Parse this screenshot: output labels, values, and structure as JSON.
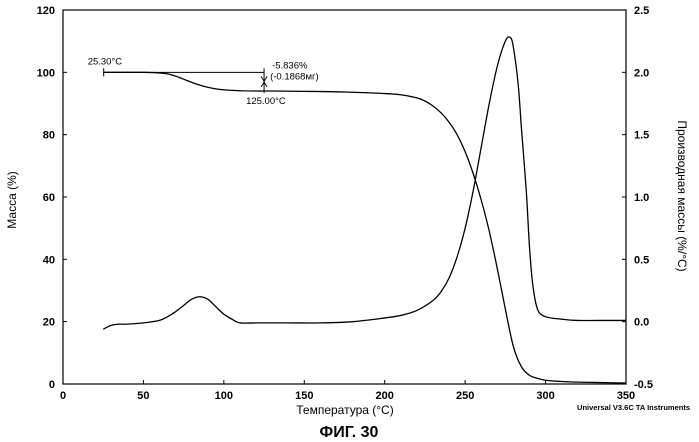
{
  "chart_data": {
    "type": "line",
    "x_axis": {
      "label": "Температура (°C)",
      "range": [
        0,
        350
      ],
      "ticks": [
        0,
        50,
        100,
        150,
        200,
        250,
        300,
        350
      ]
    },
    "y_left": {
      "label": "Масса (%)",
      "range": [
        0,
        120
      ],
      "ticks": [
        0,
        20,
        40,
        60,
        80,
        100,
        120
      ]
    },
    "y_right": {
      "label": "Производная массы (%/°C)",
      "range": [
        -0.5,
        2.5
      ],
      "ticks": [
        "-0.5",
        "0.0",
        "0.5",
        "1.0",
        "1.5",
        "2.0",
        "2.5"
      ]
    },
    "series": [
      {
        "axis": "left",
        "x": [
          25,
          40,
          50,
          60,
          65,
          70,
          75,
          80,
          85,
          90,
          95,
          100,
          105,
          110,
          120,
          130,
          150,
          175,
          200,
          210,
          220,
          225,
          230,
          235,
          240,
          245,
          250,
          255,
          260,
          265,
          270,
          275,
          280,
          285,
          290,
          295,
          300,
          310,
          320,
          330,
          340,
          350
        ],
        "y": [
          100,
          100,
          100,
          99.8,
          99.5,
          98.8,
          97.8,
          96.8,
          95.9,
          95.2,
          94.7,
          94.4,
          94.2,
          94.1,
          94.0,
          94.0,
          93.9,
          93.7,
          93.2,
          92.8,
          91.8,
          90.8,
          89.2,
          87.0,
          84.0,
          80.0,
          74.5,
          67.5,
          59.0,
          49.0,
          37.0,
          24.0,
          12.0,
          5.5,
          2.8,
          1.8,
          1.2,
          0.8,
          0.6,
          0.5,
          0.4,
          0.3
        ]
      },
      {
        "axis": "right",
        "x": [
          25,
          30,
          35,
          40,
          50,
          60,
          65,
          70,
          75,
          80,
          85,
          90,
          95,
          100,
          105,
          110,
          120,
          140,
          160,
          180,
          200,
          210,
          220,
          230,
          235,
          240,
          245,
          250,
          255,
          260,
          265,
          270,
          275,
          278,
          280,
          283,
          285,
          288,
          290,
          292,
          295,
          300,
          310,
          320,
          340,
          350
        ],
        "y": [
          -0.06,
          -0.03,
          -0.02,
          -0.02,
          -0.01,
          0.01,
          0.04,
          0.08,
          0.13,
          0.18,
          0.2,
          0.18,
          0.12,
          0.06,
          0.02,
          -0.01,
          -0.01,
          -0.01,
          -0.01,
          0.0,
          0.03,
          0.05,
          0.09,
          0.17,
          0.24,
          0.35,
          0.52,
          0.75,
          1.05,
          1.4,
          1.75,
          2.05,
          2.25,
          2.28,
          2.2,
          1.9,
          1.55,
          1.05,
          0.6,
          0.3,
          0.1,
          0.04,
          0.02,
          0.01,
          0.01,
          0.01
        ]
      }
    ],
    "annotations": {
      "start_temp": "25.30°C",
      "end_temp": "125.00°C",
      "loss_percent": "-5.836%",
      "loss_mass": "(-0.1868мг)"
    },
    "grid": false
  },
  "credit": "Universal V3.6C TA Instruments",
  "figure_label": "ФИГ. 30"
}
